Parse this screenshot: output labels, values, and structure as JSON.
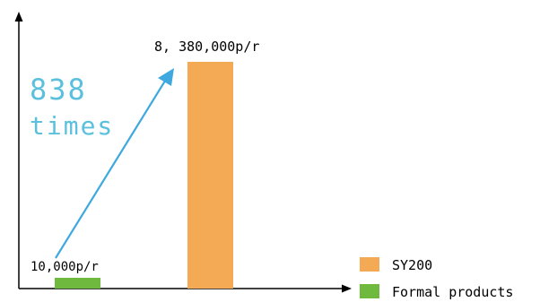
{
  "chart_data": {
    "type": "bar",
    "categories": [
      "Formal products",
      "SY200"
    ],
    "values": [
      10000,
      8380000
    ],
    "value_labels": [
      "10,000p/r",
      "8, 380,000p/r"
    ],
    "annotation": [
      "838",
      "times"
    ],
    "legend": [
      {
        "name": "SY200",
        "color": "#f4a954"
      },
      {
        "name": "Formal products",
        "color": "#70b93f"
      }
    ],
    "legend_position": "bottom-right",
    "arrow_color": "#3fa9df",
    "annotation_color": "#5bc0de",
    "grid": false
  }
}
